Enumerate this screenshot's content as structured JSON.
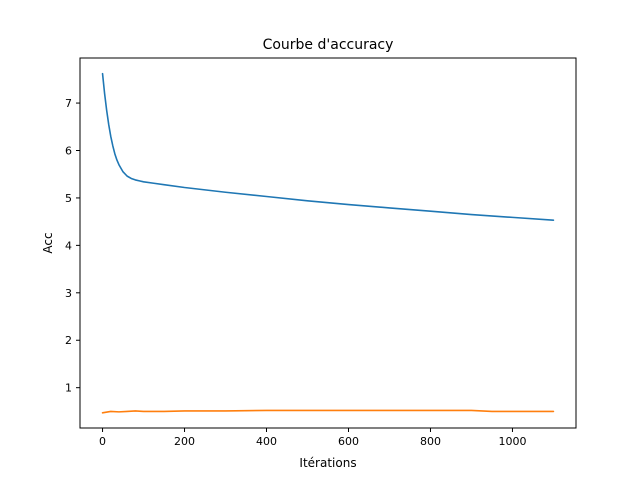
{
  "chart_data": {
    "type": "line",
    "title": "Courbe d'accuracy",
    "xlabel": "Itérations",
    "ylabel": "Acc",
    "xlim": [
      -55,
      1155
    ],
    "ylim": [
      0.15,
      7.95
    ],
    "xticks": [
      0,
      200,
      400,
      600,
      800,
      1000
    ],
    "yticks": [
      1,
      2,
      3,
      4,
      5,
      6,
      7
    ],
    "grid": false,
    "legend": null,
    "series": [
      {
        "color": "#1f77b4",
        "x": [
          0,
          5,
          10,
          15,
          20,
          25,
          30,
          35,
          40,
          50,
          60,
          70,
          80,
          90,
          100,
          125,
          150,
          200,
          250,
          300,
          400,
          500,
          600,
          700,
          800,
          900,
          1000,
          1100
        ],
        "y": [
          7.62,
          7.2,
          6.85,
          6.55,
          6.3,
          6.1,
          5.93,
          5.8,
          5.7,
          5.55,
          5.46,
          5.41,
          5.38,
          5.36,
          5.34,
          5.31,
          5.28,
          5.22,
          5.17,
          5.12,
          5.03,
          4.94,
          4.86,
          4.79,
          4.72,
          4.65,
          4.59,
          4.53
        ]
      },
      {
        "color": "#ff7f0e",
        "x": [
          0,
          20,
          40,
          60,
          80,
          100,
          150,
          200,
          300,
          400,
          500,
          600,
          700,
          800,
          900,
          950,
          1000,
          1100
        ],
        "y": [
          0.47,
          0.5,
          0.49,
          0.5,
          0.51,
          0.5,
          0.5,
          0.51,
          0.51,
          0.52,
          0.52,
          0.52,
          0.52,
          0.52,
          0.52,
          0.5,
          0.5,
          0.5
        ]
      }
    ]
  }
}
